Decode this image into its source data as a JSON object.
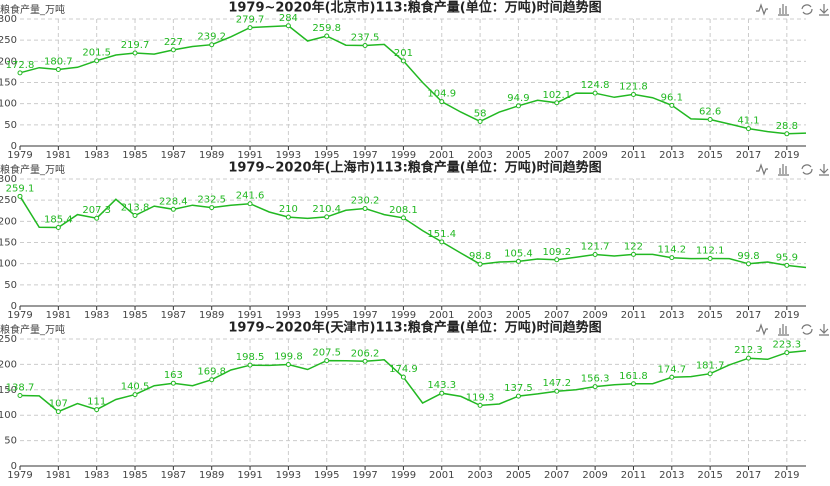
{
  "chart_data": [
    {
      "type": "line",
      "title": "1979~2020年(北京市)113:粮食产量(单位：万吨)时间趋势图",
      "ylabel": "粮食产量_万吨",
      "categories": [
        "1979",
        null,
        "1981",
        null,
        "1983",
        null,
        "1985",
        null,
        "1987",
        null,
        "1989",
        null,
        "1991",
        null,
        "1993",
        null,
        "1995",
        null,
        "1997",
        null,
        "1999",
        null,
        "2001",
        null,
        "2003",
        null,
        "2005",
        null,
        "2007",
        null,
        "2009",
        null,
        "2011",
        null,
        "2013",
        null,
        "2015",
        null,
        "2017",
        null,
        "2019",
        null
      ],
      "values": [
        172.8,
        185,
        180.7,
        186,
        201.5,
        215,
        219.7,
        217,
        227,
        235,
        239.2,
        258,
        279.7,
        282,
        284,
        248,
        259.8,
        238,
        237.5,
        240,
        201,
        150,
        104.9,
        80,
        58,
        80,
        94.9,
        108,
        102.1,
        125,
        124.8,
        115,
        121.8,
        114,
        96.1,
        63.9,
        62.6,
        52,
        41.1,
        34,
        28.8,
        30.5
      ],
      "color": "#22b822",
      "ylim": [
        0,
        300
      ],
      "yticks": [
        0,
        50,
        100,
        150,
        200,
        250,
        300
      ],
      "grid": true
    },
    {
      "type": "line",
      "title": "1979~2020年(上海市)113:粮食产量(单位：万吨)时间趋势图",
      "ylabel": "粮食产量_万吨",
      "categories": [
        "1979",
        null,
        "1981",
        null,
        "1983",
        null,
        "1985",
        null,
        "1987",
        null,
        "1989",
        null,
        "1991",
        null,
        "1993",
        null,
        "1995",
        null,
        "1997",
        null,
        "1999",
        null,
        "2001",
        null,
        "2003",
        null,
        "2005",
        null,
        "2007",
        null,
        "2009",
        null,
        "2011",
        null,
        "2013",
        null,
        "2015",
        null,
        "2017",
        null,
        "2019",
        null
      ],
      "values": [
        259.1,
        186,
        185.4,
        216,
        207.3,
        252,
        213.8,
        236,
        228.4,
        238,
        232.5,
        238,
        241.6,
        222,
        210,
        207,
        210.4,
        226,
        230.2,
        216,
        208.1,
        178,
        151.4,
        125,
        98.8,
        104,
        105.4,
        111,
        109.2,
        115,
        121.7,
        118,
        122,
        122,
        114.2,
        112,
        112.1,
        112,
        99.8,
        104,
        95.9,
        91
      ],
      "color": "#22b822",
      "ylim": [
        0,
        300
      ],
      "yticks": [
        0,
        50,
        100,
        150,
        200,
        250,
        300
      ],
      "grid": true
    },
    {
      "type": "line",
      "title": "1979~2020年(天津市)113:粮食产量(单位：万吨)时间趋势图",
      "ylabel": "粮食产量_万吨",
      "categories": [
        "1979",
        null,
        "1981",
        null,
        "1983",
        null,
        "1985",
        null,
        "1987",
        null,
        "1989",
        null,
        "1991",
        null,
        "1993",
        null,
        "1995",
        null,
        "1997",
        null,
        "1999",
        null,
        "2001",
        null,
        "2003",
        null,
        "2005",
        null,
        "2007",
        null,
        "2009",
        null,
        "2011",
        null,
        "2013",
        null,
        "2015",
        null,
        "2017",
        null,
        "2019",
        null
      ],
      "values": [
        138.7,
        138,
        107,
        123,
        111,
        131,
        140.5,
        158,
        163,
        158,
        169.8,
        189,
        198.5,
        198,
        199.8,
        190,
        207.5,
        207,
        206.2,
        209,
        174.9,
        124,
        143.3,
        137,
        119.3,
        122,
        137.5,
        142,
        147.2,
        150,
        156.3,
        160,
        161.8,
        162,
        174.7,
        176,
        181.7,
        199,
        212.3,
        210,
        223.3,
        227
      ],
      "color": "#22b822",
      "ylim": [
        0,
        250
      ],
      "yticks": [
        0,
        50,
        100,
        150,
        200,
        250
      ],
      "grid": true
    }
  ]
}
